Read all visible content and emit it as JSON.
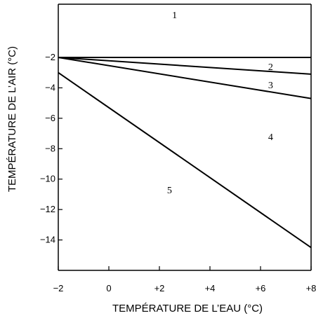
{
  "chart_data": {
    "type": "line",
    "xlabel": "TEMPÉRATURE DE L’EAU (°C)",
    "ylabel": "TEMPÉRATURE DE L’AIR (°C)",
    "xlim": [
      -2,
      8
    ],
    "ylim": [
      -16,
      1.5
    ],
    "x_ticks": [
      {
        "value": -2,
        "label": "−2"
      },
      {
        "value": 0,
        "label": "0"
      },
      {
        "value": 2,
        "label": "+2"
      },
      {
        "value": 4,
        "label": "+4"
      },
      {
        "value": 6,
        "label": "+6"
      },
      {
        "value": 8,
        "label": "+8"
      }
    ],
    "y_ticks": [
      {
        "value": -2,
        "label": "−2"
      },
      {
        "value": -4,
        "label": "−4"
      },
      {
        "value": -6,
        "label": "−6"
      },
      {
        "value": -8,
        "label": "−8"
      },
      {
        "value": -10,
        "label": "−10"
      },
      {
        "value": -12,
        "label": "−12"
      },
      {
        "value": -14,
        "label": "−14"
      }
    ],
    "lines": [
      {
        "x": [
          -2,
          8
        ],
        "y": [
          -2.0,
          -2.0
        ]
      },
      {
        "x": [
          -2,
          8
        ],
        "y": [
          -2.0,
          -3.1
        ]
      },
      {
        "x": [
          -2,
          8
        ],
        "y": [
          -2.0,
          -4.7
        ]
      },
      {
        "x": [
          -2,
          8
        ],
        "y": [
          -3.0,
          -14.5
        ]
      }
    ],
    "region_labels": [
      {
        "label": "1",
        "x": 2.6,
        "y": 0.8
      },
      {
        "label": "2",
        "x": 6.4,
        "y": -2.6
      },
      {
        "label": "3",
        "x": 6.4,
        "y": -3.8
      },
      {
        "label": "4",
        "x": 6.4,
        "y": -7.2
      },
      {
        "label": "5",
        "x": 2.4,
        "y": -10.7
      }
    ],
    "grid": false,
    "legend": "none"
  }
}
